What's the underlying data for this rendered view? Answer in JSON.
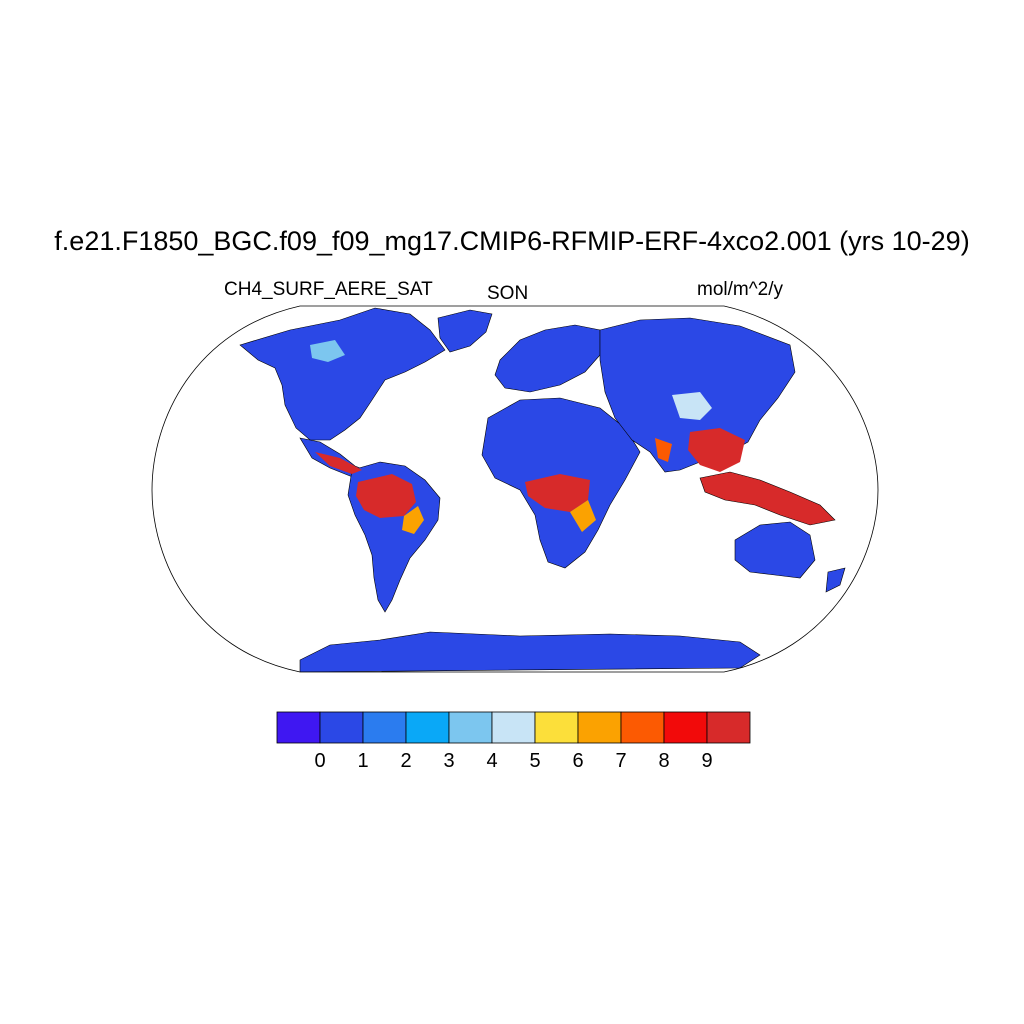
{
  "title": "f.e21.F1850_BGC.f09_f09_mg17.CMIP6-RFMIP-ERF-4xco2.001 (yrs 10-29)",
  "variable": "CH4_SURF_AERE_SAT",
  "season": "SON",
  "units": "mol/m^2/y",
  "projection": "Robinson",
  "colorbar": {
    "colors": [
      "#3f17f2",
      "#2b48e6",
      "#2b7cef",
      "#0aa8f7",
      "#7cc6ef",
      "#c8e4f6",
      "#fcdf3a",
      "#fba201",
      "#fc5a02",
      "#f20a0a",
      "#d72a2a"
    ],
    "labels": [
      "0",
      "1",
      "2",
      "3",
      "4",
      "5",
      "6",
      "7",
      "8",
      "9"
    ]
  },
  "regions": {
    "background": "#2b48e6",
    "high_emission_color": "#d72a2a",
    "high_emission_areas": [
      "Amazon basin",
      "Congo basin",
      "Southeast Asia",
      "Maritime Continent"
    ]
  }
}
